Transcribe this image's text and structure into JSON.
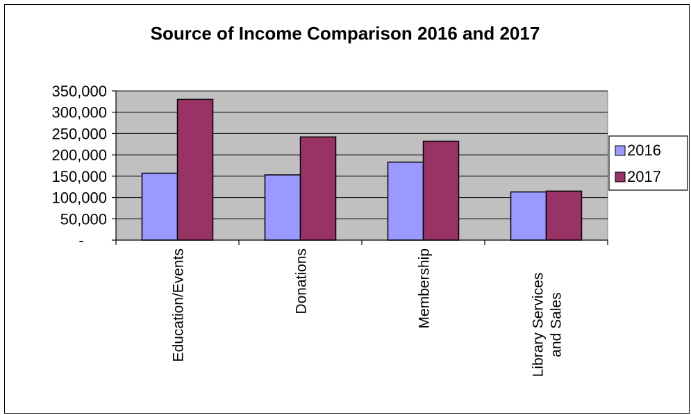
{
  "chart_data": {
    "type": "bar",
    "title": "Source of Income Comparison 2016 and 2017",
    "xlabel": "",
    "ylabel": "",
    "categories": [
      "Education/Events",
      "Donations",
      "Membership",
      "Library Services and Sales"
    ],
    "category_lines": [
      [
        "Education/Events"
      ],
      [
        "Donations"
      ],
      [
        "Membership"
      ],
      [
        "Library Services",
        "and Sales"
      ]
    ],
    "series": [
      {
        "name": "2016",
        "color": "#9999FF",
        "values": [
          157000,
          153000,
          183000,
          113000
        ]
      },
      {
        "name": "2017",
        "color": "#993366",
        "values": [
          330000,
          242000,
          232000,
          115000
        ]
      }
    ],
    "ylim": [
      0,
      350000
    ],
    "yticks": [
      0,
      50000,
      100000,
      150000,
      200000,
      250000,
      300000,
      350000
    ],
    "ytick_labels": [
      "-",
      "50,000",
      "100,000",
      "150,000",
      "200,000",
      "250,000",
      "300,000",
      "350,000"
    ],
    "grid": true,
    "plot_background": "#C0C0C0",
    "legend_position": "right"
  }
}
